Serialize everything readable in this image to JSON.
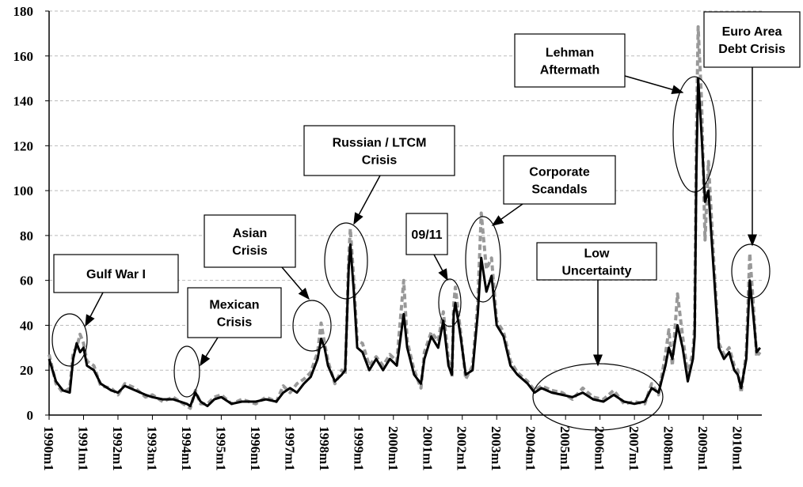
{
  "chart_data": {
    "type": "line",
    "x": [
      1990,
      1990.2,
      1990.4,
      1990.6,
      1990.7,
      1990.8,
      1990.9,
      1991,
      1991.1,
      1991.3,
      1991.5,
      1991.8,
      1992,
      1992.2,
      1992.5,
      1992.8,
      1993,
      1993.3,
      1993.6,
      1994,
      1994.1,
      1994.25,
      1994.4,
      1994.6,
      1994.8,
      1995,
      1995.3,
      1995.6,
      1996,
      1996.3,
      1996.6,
      1996.8,
      1997,
      1997.2,
      1997.4,
      1997.6,
      1997.8,
      1997.9,
      1998,
      1998.1,
      1998.3,
      1998.5,
      1998.6,
      1998.7,
      1998.75,
      1998.85,
      1998.95,
      1999.1,
      1999.3,
      1999.5,
      1999.7,
      1999.9,
      2000.1,
      2000.3,
      2000.4,
      2000.6,
      2000.8,
      2000.9,
      2001.1,
      2001.3,
      2001.45,
      2001.6,
      2001.7,
      2001.75,
      2001.8,
      2001.95,
      2002.1,
      2002.3,
      2002.45,
      2002.55,
      2002.7,
      2002.85,
      2003,
      2003.2,
      2003.4,
      2003.6,
      2003.9,
      2004.1,
      2004.3,
      2004.6,
      2004.9,
      2005.2,
      2005.5,
      2005.8,
      2006.1,
      2006.4,
      2006.7,
      2007,
      2007.3,
      2007.5,
      2007.7,
      2007.9,
      2008,
      2008.1,
      2008.25,
      2008.4,
      2008.55,
      2008.7,
      2008.75,
      2008.8,
      2008.85,
      2008.95,
      2009.05,
      2009.15,
      2009.3,
      2009.45,
      2009.6,
      2009.75,
      2009.9,
      2010,
      2010.1,
      2010.25,
      2010.35,
      2010.45,
      2010.55,
      2010.65
    ],
    "series": [
      {
        "color": "#999999",
        "dashed": true,
        "values": [
          27,
          14,
          10,
          12,
          28,
          30,
          36,
          32,
          24,
          22,
          13,
          12,
          9,
          14,
          12,
          8,
          9,
          6,
          8,
          4,
          3,
          11,
          5,
          5,
          8,
          9,
          5,
          7,
          5,
          8,
          6,
          13,
          10,
          14,
          16,
          19,
          28,
          41,
          32,
          24,
          14,
          20,
          18,
          70,
          83,
          60,
          33,
          32,
          22,
          26,
          22,
          27,
          24,
          60,
          33,
          20,
          12,
          28,
          37,
          33,
          46,
          25,
          17,
          49,
          57,
          37,
          16,
          22,
          50,
          90,
          65,
          70,
          42,
          37,
          24,
          19,
          15,
          11,
          13,
          11,
          10,
          7,
          12,
          8,
          7,
          11,
          5,
          6,
          5,
          14,
          9,
          27,
          38,
          22,
          54,
          35,
          18,
          28,
          40,
          125,
          173,
          140,
          78,
          113,
          70,
          32,
          27,
          30,
          22,
          20,
          10,
          28,
          72,
          50,
          26,
          28
        ]
      },
      {
        "color": "#000000",
        "dashed": false,
        "values": [
          25,
          15,
          11,
          10,
          25,
          32,
          28,
          30,
          22,
          20,
          14,
          11,
          10,
          13,
          11,
          9,
          8,
          7,
          7,
          5,
          4,
          10,
          6,
          4,
          7,
          8,
          5,
          6,
          6,
          7,
          6,
          10,
          12,
          10,
          14,
          17,
          25,
          34,
          30,
          22,
          15,
          18,
          20,
          65,
          76,
          55,
          30,
          28,
          20,
          25,
          20,
          25,
          22,
          45,
          30,
          18,
          14,
          25,
          35,
          30,
          42,
          22,
          18,
          45,
          50,
          35,
          18,
          20,
          45,
          70,
          55,
          62,
          40,
          35,
          22,
          18,
          14,
          10,
          12,
          10,
          9,
          8,
          10,
          7,
          6,
          9,
          6,
          5,
          6,
          12,
          10,
          22,
          30,
          25,
          40,
          30,
          15,
          25,
          35,
          110,
          150,
          125,
          95,
          100,
          65,
          30,
          25,
          28,
          20,
          18,
          12,
          25,
          60,
          45,
          28,
          30
        ]
      }
    ],
    "xlim": [
      1990,
      2010.7
    ],
    "xticks": [
      {
        "value": 1990,
        "label": "1990m1"
      },
      {
        "value": 1991,
        "label": "1991m1"
      },
      {
        "value": 1992,
        "label": "1992m1"
      },
      {
        "value": 1993,
        "label": "1993m1"
      },
      {
        "value": 1994,
        "label": "1994m1"
      },
      {
        "value": 1995,
        "label": "1995m1"
      },
      {
        "value": 1996,
        "label": "1996m1"
      },
      {
        "value": 1997,
        "label": "1997m1"
      },
      {
        "value": 1998,
        "label": "1998m1"
      },
      {
        "value": 1999,
        "label": "1999m1"
      },
      {
        "value": 2000,
        "label": "2000m1"
      },
      {
        "value": 2001,
        "label": "2001m1"
      },
      {
        "value": 2002,
        "label": "2002m1"
      },
      {
        "value": 2003,
        "label": "2003m1"
      },
      {
        "value": 2004,
        "label": "2004m1"
      },
      {
        "value": 2005,
        "label": "2005m1"
      },
      {
        "value": 2006,
        "label": "2006m1"
      },
      {
        "value": 2007,
        "label": "2007m1"
      },
      {
        "value": 2008,
        "label": "2008m1"
      },
      {
        "value": 2009,
        "label": "2009m1"
      },
      {
        "value": 2010,
        "label": "2010m1"
      }
    ],
    "ylim": [
      0,
      180
    ],
    "yticks": [
      0,
      20,
      40,
      60,
      80,
      100,
      120,
      140,
      160,
      180
    ],
    "grid": true,
    "annotations": [
      [
        "Gulf War I"
      ],
      [
        "Mexican",
        "Crisis"
      ],
      [
        "Asian",
        "Crisis"
      ],
      [
        "Russian / LTCM",
        "Crisis"
      ],
      [
        "09/11"
      ],
      [
        "Corporate",
        "Scandals"
      ],
      [
        "Low",
        "Uncertainty"
      ],
      [
        "Lehman",
        "Aftermath"
      ],
      [
        "Euro Area",
        "Debt Crisis"
      ]
    ]
  }
}
